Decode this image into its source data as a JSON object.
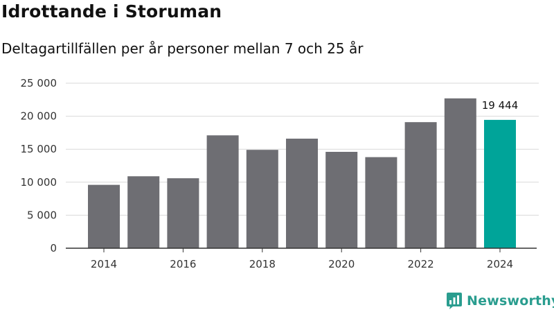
{
  "title": "Idrottande i Storuman",
  "subtitle": "Deltagartillfällen per år personer mellan 7 och 25 år",
  "brand": {
    "name": "Newsworthy",
    "logo_icon": "newsworthy-logo-icon"
  },
  "colors": {
    "bar": "#6e6e73",
    "highlight": "#00a499",
    "grid": "#d9d9d9",
    "axis": "#333333",
    "brand": "#2a9d8f"
  },
  "chart_data": {
    "type": "bar",
    "title": "Idrottande i Storuman",
    "subtitle": "Deltagartillfällen per år personer mellan 7 och 25 år",
    "xlabel": "",
    "ylabel": "",
    "categories": [
      "2014",
      "2015",
      "2016",
      "2017",
      "2018",
      "2019",
      "2020",
      "2021",
      "2022",
      "2023",
      "2024"
    ],
    "values": [
      9600,
      10900,
      10600,
      17100,
      14900,
      16600,
      14600,
      13800,
      19100,
      22700,
      19444
    ],
    "x_tick_labels": [
      "2014",
      "2016",
      "2018",
      "2020",
      "2022",
      "2024"
    ],
    "y_ticks": [
      0,
      5000,
      10000,
      15000,
      20000,
      25000
    ],
    "y_tick_labels": [
      "0",
      "5 000",
      "10 000",
      "15 000",
      "20 000",
      "25 000"
    ],
    "ylim": [
      0,
      25000
    ],
    "grid": true,
    "highlight_index": 10,
    "data_labels": [
      {
        "index": 10,
        "text": "19 444"
      }
    ]
  }
}
